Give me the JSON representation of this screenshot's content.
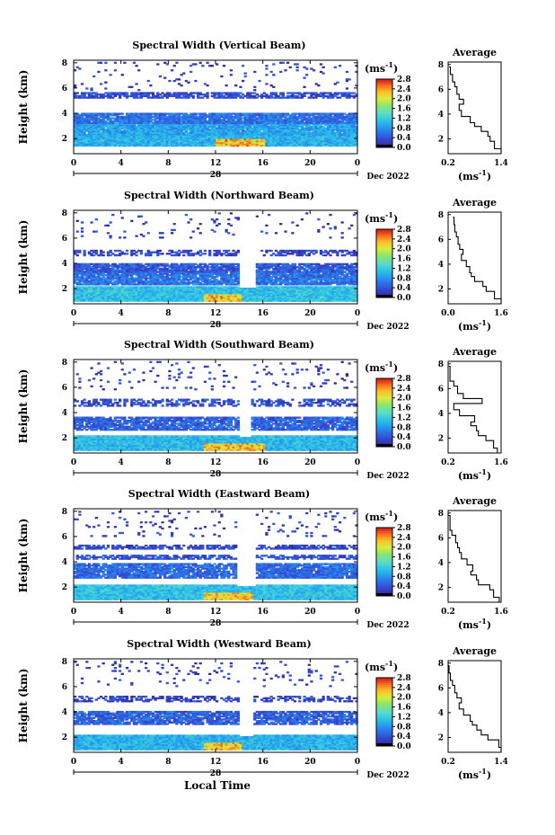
{
  "figure": {
    "xlabel_bottom": "Local Time"
  },
  "panels": [
    {
      "title": "Spectral Width (Vertical Beam)",
      "avg_xticks": [
        "0.2",
        "1.4"
      ],
      "date": "Dec 2022"
    },
    {
      "title": "Spectral Width (Northward Beam)",
      "avg_xticks": [
        "0.0",
        "1.6"
      ],
      "date": "Dec 2022"
    },
    {
      "title": "Spectral Width (Southward Beam)",
      "avg_xticks": [
        "0.2",
        "1.6"
      ],
      "date": "Dec 2022"
    },
    {
      "title": "Spectral Width (Eastward Beam)",
      "avg_xticks": [
        "0.2",
        "1.6"
      ],
      "date": "Dec 2022"
    },
    {
      "title": "Spectral Width (Westward Beam)",
      "avg_xticks": [
        "0.2",
        "1.4"
      ],
      "date": "Dec 2022"
    }
  ],
  "shared": {
    "ylabel": "Height (km)",
    "yticks": [
      "2",
      "4",
      "6",
      "8"
    ],
    "xticks": [
      "0",
      "4",
      "8",
      "12",
      "16",
      "20",
      "0"
    ],
    "day_label": "28",
    "colorbar_unit": "(ms",
    "colorbar_unit_sup": "-1",
    "colorbar_unit_close": ")",
    "colorbar_ticks": [
      "0.0",
      "0.4",
      "0.8",
      "1.2",
      "1.6",
      "2.0",
      "2.4",
      "2.8"
    ],
    "avg_title": "Average",
    "avg_yticks": [
      "2",
      "4",
      "6",
      "8"
    ],
    "avg_xlabel": "(ms",
    "avg_xlabel_sup": "-1",
    "avg_xlabel_close": ")"
  },
  "chart_data": [
    {
      "type": "heatmap",
      "title": "Spectral Width (Vertical Beam)",
      "xlabel": "",
      "ylabel": "Height (km)",
      "xlim": [
        0,
        24
      ],
      "ylim": [
        0.8,
        8.2
      ],
      "clim": [
        0.0,
        2.8
      ],
      "x_tick_labels": [
        "0",
        "4",
        "8",
        "12",
        "16",
        "20",
        "0"
      ],
      "day_marker": "28",
      "profile_keys": [
        0.8,
        1.2,
        1.8,
        2.2,
        2.6,
        3.0,
        3.3,
        3.8,
        4.3,
        4.8,
        5.2,
        5.6,
        6.2,
        6.6,
        7.2,
        7.8
      ],
      "layers": [
        {
          "y0": 1.4,
          "y1": 2.3,
          "base": 1.0,
          "peak": 2.7,
          "peak_x": [
            12,
            16
          ],
          "coverage": 1.0
        },
        {
          "y0": 2.3,
          "y1": 3.2,
          "base": 0.9,
          "coverage": 0.97
        },
        {
          "y0": 3.2,
          "y1": 4.0,
          "base": 0.6,
          "coverage": 0.94
        },
        {
          "y0": 5.2,
          "y1": 5.6,
          "base": 0.35,
          "coverage": 0.75
        },
        {
          "y0": 5.8,
          "y1": 8.0,
          "base": 0.25,
          "coverage": 0.05
        }
      ],
      "gap_x": null,
      "average_profile": {
        "title": "Average",
        "xlim": [
          0.2,
          1.4
        ],
        "ylim": [
          0.8,
          8.2
        ],
        "x": [
          1.4,
          1.25,
          1.15,
          1.1,
          0.95,
          0.8,
          0.7,
          0.5,
          0.45,
          0.55,
          0.45,
          0.4,
          0.35,
          0.3,
          0.25,
          0.22
        ]
      }
    },
    {
      "type": "heatmap",
      "title": "Spectral Width (Northward Beam)",
      "xlabel": "",
      "ylabel": "Height (km)",
      "xlim": [
        0,
        24
      ],
      "ylim": [
        0.8,
        8.2
      ],
      "clim": [
        0.0,
        2.8
      ],
      "x_tick_labels": [
        "0",
        "4",
        "8",
        "12",
        "16",
        "20",
        "0"
      ],
      "day_marker": "28",
      "profile_keys": [
        0.8,
        1.2,
        1.8,
        2.2,
        2.6,
        3.0,
        3.3,
        3.8,
        4.3,
        4.8,
        5.2,
        5.6,
        6.2,
        6.6,
        7.2,
        7.8
      ],
      "layers": [
        {
          "y0": 1.0,
          "y1": 2.1,
          "base": 1.1,
          "peak": 2.6,
          "peak_x": [
            11,
            14
          ],
          "coverage": 1.0
        },
        {
          "y0": 2.3,
          "y1": 3.3,
          "base": 0.6,
          "coverage": 0.92
        },
        {
          "y0": 3.3,
          "y1": 4.0,
          "base": 0.45,
          "coverage": 0.9
        },
        {
          "y0": 4.6,
          "y1": 5.0,
          "base": 0.3,
          "coverage": 0.55
        },
        {
          "y0": 6.0,
          "y1": 8.0,
          "base": 0.25,
          "coverage": 0.05
        }
      ],
      "gap_x": [
        13.9,
        15.3
      ],
      "average_profile": {
        "title": "Average",
        "xlim": [
          0.0,
          1.6
        ],
        "ylim": [
          0.8,
          8.2
        ],
        "x": [
          1.6,
          1.4,
          1.15,
          1.05,
          0.8,
          0.7,
          0.65,
          0.55,
          0.4,
          0.45,
          0.35,
          0.3,
          0.25,
          0.2,
          0.18,
          0.15
        ]
      }
    },
    {
      "type": "heatmap",
      "title": "Spectral Width (Southward Beam)",
      "xlabel": "",
      "ylabel": "Height (km)",
      "xlim": [
        0,
        24
      ],
      "ylim": [
        0.8,
        8.2
      ],
      "clim": [
        0.0,
        2.8
      ],
      "x_tick_labels": [
        "0",
        "4",
        "8",
        "12",
        "16",
        "20",
        "0"
      ],
      "day_marker": "28",
      "profile_keys": [
        0.8,
        1.2,
        1.8,
        2.2,
        2.6,
        3.0,
        3.3,
        3.8,
        4.3,
        4.8,
        5.2,
        5.6,
        6.2,
        6.6,
        7.2,
        7.8
      ],
      "layers": [
        {
          "y0": 1.0,
          "y1": 2.2,
          "base": 1.05,
          "peak": 2.6,
          "peak_x": [
            11,
            16
          ],
          "coverage": 1.0
        },
        {
          "y0": 2.6,
          "y1": 3.6,
          "base": 0.5,
          "coverage": 0.85
        },
        {
          "y0": 4.5,
          "y1": 5.1,
          "base": 0.35,
          "coverage": 0.55
        },
        {
          "y0": 5.8,
          "y1": 8.0,
          "base": 0.25,
          "coverage": 0.06
        }
      ],
      "gap_x": [
        13.9,
        14.9
      ],
      "average_profile": {
        "title": "Average",
        "xlim": [
          0.2,
          1.6
        ],
        "ylim": [
          0.8,
          8.2
        ],
        "x": [
          1.5,
          1.4,
          1.2,
          1.0,
          0.95,
          0.8,
          0.9,
          0.5,
          0.35,
          1.1,
          0.6,
          0.45,
          0.35,
          0.25,
          0.25,
          0.22
        ]
      }
    },
    {
      "type": "heatmap",
      "title": "Spectral Width (Eastward Beam)",
      "xlabel": "",
      "ylabel": "Height (km)",
      "xlim": [
        0,
        24
      ],
      "ylim": [
        0.8,
        8.2
      ],
      "clim": [
        0.0,
        2.8
      ],
      "x_tick_labels": [
        "0",
        "4",
        "8",
        "12",
        "16",
        "20",
        "0"
      ],
      "day_marker": "28",
      "profile_keys": [
        0.8,
        1.2,
        1.8,
        2.2,
        2.6,
        3.0,
        3.3,
        3.8,
        4.3,
        4.8,
        5.2,
        5.6,
        6.2,
        6.6,
        7.2,
        7.8
      ],
      "layers": [
        {
          "y0": 1.0,
          "y1": 2.2,
          "base": 1.1,
          "peak": 2.6,
          "peak_x": [
            11,
            15
          ],
          "coverage": 1.0
        },
        {
          "y0": 2.7,
          "y1": 3.8,
          "base": 0.55,
          "coverage": 0.9
        },
        {
          "y0": 4.2,
          "y1": 4.5,
          "base": 0.4,
          "coverage": 0.7
        },
        {
          "y0": 5.0,
          "y1": 5.3,
          "base": 0.3,
          "coverage": 0.7
        },
        {
          "y0": 6.0,
          "y1": 8.0,
          "base": 0.25,
          "coverage": 0.06
        }
      ],
      "gap_x": [
        13.8,
        15.3
      ],
      "average_profile": {
        "title": "Average",
        "xlim": [
          0.2,
          1.6
        ],
        "ylim": [
          0.8,
          8.2
        ],
        "x": [
          1.55,
          1.4,
          1.3,
          1.0,
          0.95,
          0.8,
          0.85,
          0.7,
          0.55,
          0.5,
          0.45,
          0.4,
          0.3,
          0.25,
          0.25,
          0.2
        ]
      }
    },
    {
      "type": "heatmap",
      "title": "Spectral Width (Westward Beam)",
      "xlabel": "Local Time",
      "ylabel": "Height (km)",
      "xlim": [
        0,
        24
      ],
      "ylim": [
        0.8,
        8.2
      ],
      "clim": [
        0.0,
        2.8
      ],
      "x_tick_labels": [
        "0",
        "4",
        "8",
        "12",
        "16",
        "20",
        "0"
      ],
      "day_marker": "28",
      "profile_keys": [
        0.8,
        1.2,
        1.8,
        2.2,
        2.6,
        3.0,
        3.3,
        3.8,
        4.3,
        4.8,
        5.2,
        5.6,
        6.2,
        6.6,
        7.2,
        7.8
      ],
      "layers": [
        {
          "y0": 1.0,
          "y1": 2.2,
          "base": 1.0,
          "peak": 2.6,
          "peak_x": [
            11,
            14
          ],
          "coverage": 1.0
        },
        {
          "y0": 3.0,
          "y1": 4.0,
          "base": 0.5,
          "coverage": 0.85
        },
        {
          "y0": 4.8,
          "y1": 5.2,
          "base": 0.3,
          "coverage": 0.5
        },
        {
          "y0": 6.0,
          "y1": 8.0,
          "base": 0.25,
          "coverage": 0.05
        }
      ],
      "gap_x": [
        13.9,
        15.2
      ],
      "average_profile": {
        "title": "Average",
        "xlim": [
          0.2,
          1.4
        ],
        "ylim": [
          0.8,
          8.2
        ],
        "x": [
          1.4,
          1.35,
          1.1,
          0.95,
          0.85,
          0.75,
          0.7,
          0.55,
          0.45,
          0.5,
          0.4,
          0.35,
          0.3,
          0.25,
          0.22,
          0.2
        ]
      }
    }
  ]
}
